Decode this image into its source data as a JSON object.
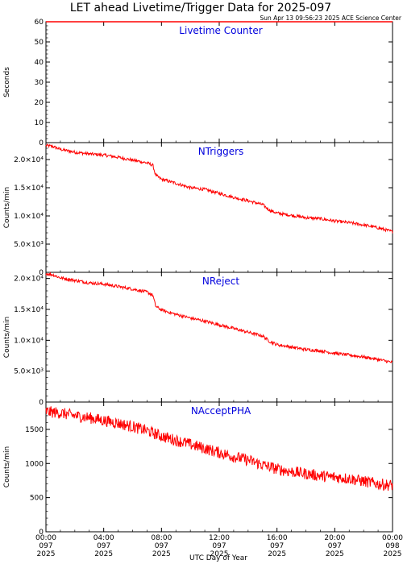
{
  "header": {
    "title": "LET ahead Livetime/Trigger Data for 2025-097",
    "subtitle": "Sun Apr 13 09:56:23 2025 ACE Science Center"
  },
  "colors": {
    "series": "#ff0000",
    "panel_title": "#0000dd",
    "axes": "#000000"
  },
  "chart_data": [
    {
      "type": "line",
      "title": "Livetime Counter",
      "ylabel": "Seconds",
      "xlabel": "",
      "ylim": [
        0,
        60
      ],
      "yticks": [
        0,
        10,
        20,
        30,
        40,
        50,
        60
      ],
      "ytick_labels": [
        "0",
        "10",
        "20",
        "30",
        "40",
        "50",
        "60"
      ],
      "grid": false,
      "series": [
        {
          "x": [
            0,
            24
          ],
          "values": [
            60,
            60
          ]
        }
      ]
    },
    {
      "type": "line",
      "title": "NTriggers",
      "ylabel": "Counts/min",
      "xlabel": "",
      "ylim": [
        0,
        23000
      ],
      "yticks": [
        0,
        5000,
        10000,
        15000,
        20000
      ],
      "ytick_labels": [
        "0",
        "5.0×10³",
        "1.0×10⁴",
        "1.5×10⁴",
        "2.0×10⁴"
      ],
      "grid": false,
      "series": [
        {
          "x": [
            0,
            0.5,
            1,
            2,
            3,
            4,
            5,
            6,
            7,
            7.4,
            7.6,
            8,
            9,
            10,
            11,
            12,
            13,
            14,
            15,
            15.5,
            16,
            17,
            18,
            19,
            20,
            21,
            22,
            23,
            24
          ],
          "values": [
            22500,
            22300,
            21800,
            21300,
            21000,
            20800,
            20400,
            19900,
            19400,
            19000,
            17200,
            16500,
            15800,
            15000,
            14700,
            14000,
            13300,
            12700,
            12000,
            11000,
            10500,
            10100,
            9700,
            9500,
            9100,
            8800,
            8400,
            7900,
            7200
          ]
        }
      ]
    },
    {
      "type": "line",
      "title": "NReject",
      "ylabel": "Counts/min",
      "xlabel": "",
      "ylim": [
        0,
        21000
      ],
      "yticks": [
        0,
        5000,
        10000,
        15000,
        20000
      ],
      "ytick_labels": [
        "0",
        "5.0×10³",
        "1.0×10⁴",
        "1.5×10⁴",
        "2.0×10⁴"
      ],
      "grid": false,
      "series": [
        {
          "x": [
            0,
            0.5,
            1,
            2,
            3,
            4,
            5,
            6,
            7,
            7.4,
            7.6,
            8,
            9,
            10,
            11,
            12,
            13,
            14,
            15,
            15.5,
            16,
            17,
            18,
            19,
            20,
            21,
            22,
            23,
            24
          ],
          "values": [
            20800,
            20600,
            20100,
            19700,
            19300,
            19100,
            18700,
            18300,
            17800,
            17300,
            15500,
            14900,
            14200,
            13600,
            13100,
            12500,
            11900,
            11300,
            10700,
            9800,
            9300,
            8900,
            8500,
            8300,
            7900,
            7600,
            7300,
            6900,
            6400
          ]
        }
      ]
    },
    {
      "type": "line",
      "title": "NAcceptPHA",
      "ylabel": "Counts/min",
      "xlabel": "UTC Day of Year",
      "ylim": [
        0,
        1900
      ],
      "yticks": [
        0,
        500,
        1000,
        1500
      ],
      "ytick_labels": [
        "0",
        "500",
        "1000",
        "1500"
      ],
      "grid": false,
      "series": [
        {
          "x": [
            0,
            1,
            2,
            3,
            4,
            5,
            6,
            7,
            8,
            9,
            10,
            11,
            12,
            13,
            14,
            15,
            16,
            17,
            18,
            19,
            20,
            21,
            22,
            23,
            24
          ],
          "values": [
            1760,
            1740,
            1700,
            1670,
            1630,
            1590,
            1540,
            1480,
            1400,
            1340,
            1280,
            1220,
            1160,
            1100,
            1050,
            980,
            920,
            880,
            850,
            820,
            800,
            780,
            740,
            700,
            680
          ]
        }
      ]
    }
  ],
  "x_axis": {
    "range": [
      0,
      24
    ],
    "ticks": [
      0,
      4,
      8,
      12,
      16,
      20,
      24
    ],
    "tick_labels": [
      [
        "00:00",
        "097",
        "2025"
      ],
      [
        "04:00",
        "097",
        "2025"
      ],
      [
        "08:00",
        "097",
        "2025"
      ],
      [
        "12:00",
        "097",
        "2025"
      ],
      [
        "16:00",
        "097",
        "2025"
      ],
      [
        "20:00",
        "097",
        "2025"
      ],
      [
        "00:00",
        "098",
        "2025"
      ]
    ]
  }
}
